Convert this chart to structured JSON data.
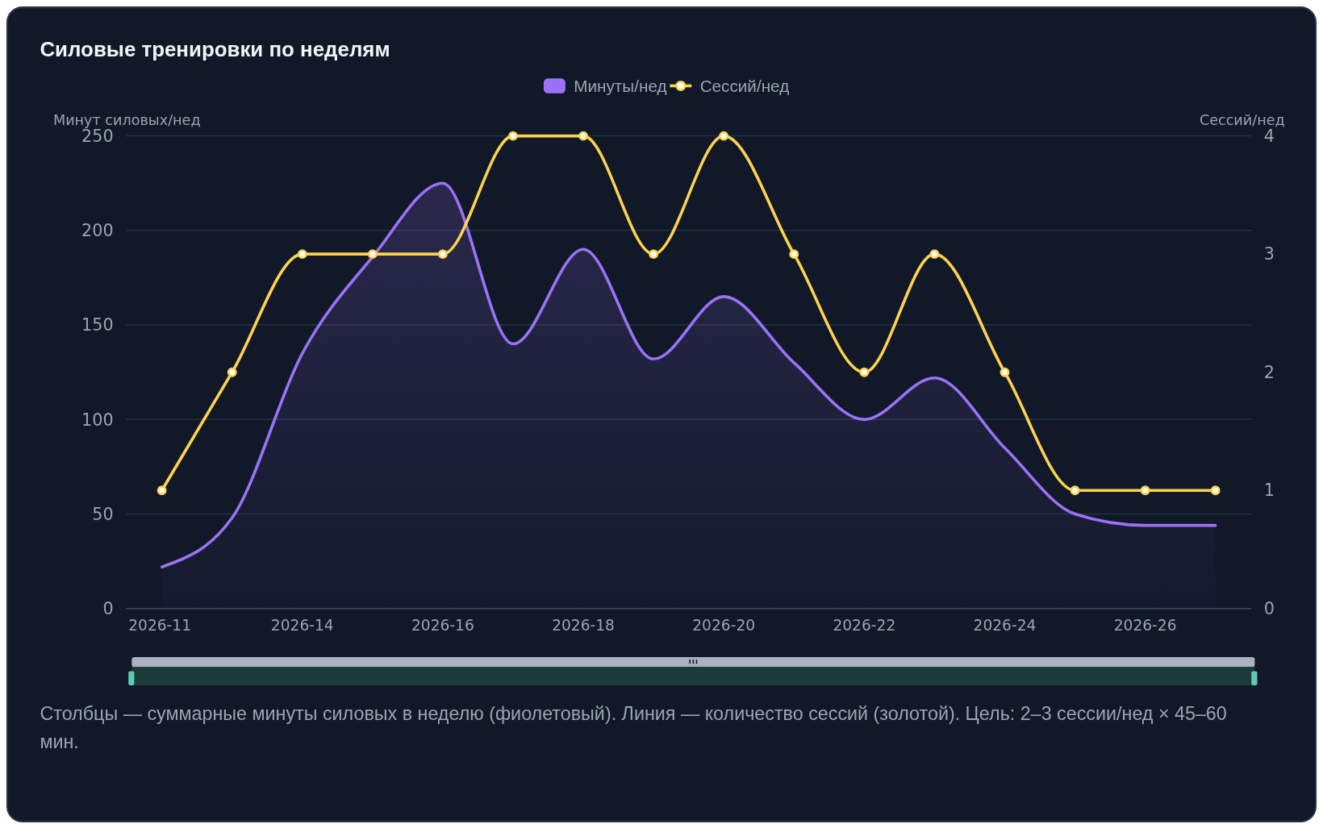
{
  "chart_data": {
    "type": "area",
    "title": "Силовые тренировки по неделям",
    "categories": [
      "2026-11",
      null,
      "2026-14",
      null,
      "2026-16",
      null,
      "2026-18",
      null,
      "2026-20",
      null,
      "2026-22",
      null,
      "2026-24",
      null,
      "2026-26",
      null
    ],
    "series": [
      {
        "name": "Минуты/нед",
        "color": "#9b72f7",
        "marker": "none",
        "values": [
          22,
          48,
          135,
          186,
          225,
          140,
          190,
          132,
          165,
          130,
          100,
          122,
          85,
          50,
          44,
          44
        ]
      },
      {
        "name": "Сессий/нед",
        "color": "#fcd34d",
        "type": "line",
        "marker": "circle",
        "axis": "y2",
        "values": [
          1,
          2,
          3,
          3,
          3,
          4,
          4,
          3,
          4,
          3,
          2,
          3,
          2,
          1,
          1,
          1
        ]
      }
    ],
    "ylabel": "Минут силовых/нед",
    "y2label": "Сессий/нед",
    "ylim": [
      0,
      250
    ],
    "yticks": [
      0,
      50,
      100,
      150,
      200,
      250
    ],
    "y2lim": [
      0,
      4
    ],
    "y2ticks": [
      0,
      1,
      2,
      3,
      4
    ],
    "grid": "y",
    "legend": "top",
    "annotations": [
      "Столбцы — суммарные минуты силовых в неделю (фиолетовый). Линия — количество сессий (золотой). Цель: 2–3 сессии/нед × 45–60 мин."
    ]
  }
}
